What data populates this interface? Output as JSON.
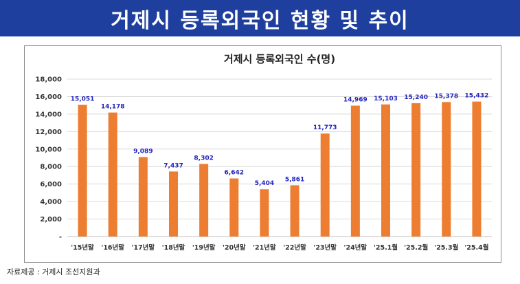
{
  "header": {
    "title": "거제시 등록외국인 현황 및 추이"
  },
  "source_note": "자료제공 : 거제시 조선지원과",
  "colors": {
    "banner": "#1f3f9f",
    "bar": "#ed7d31",
    "data_label": "#1f1fbf",
    "grid": "#d9d9d9"
  },
  "chart_data": {
    "type": "bar",
    "title": "거제시 등록외국인 수(명)",
    "xlabel": "",
    "ylabel": "",
    "categories": [
      "'15년말",
      "'16년말",
      "'17년말",
      "'18년말",
      "'19년말",
      "'20년말",
      "'21년말",
      "'22년말",
      "'23년말",
      "'24년말",
      "'25.1월",
      "'25.2월",
      "'25.3월",
      "'25.4월"
    ],
    "values": [
      15051,
      14178,
      9089,
      7437,
      8302,
      6642,
      5404,
      5861,
      11773,
      14969,
      15103,
      15240,
      15378,
      15432
    ],
    "data_labels": [
      "15,051",
      "14,178",
      "9,089",
      "7,437",
      "8,302",
      "6,642",
      "5,404",
      "5,861",
      "11,773",
      "14,969",
      "15,103",
      "15,240",
      "15,378",
      "15,432"
    ],
    "yticks": [
      0,
      2000,
      4000,
      6000,
      8000,
      10000,
      12000,
      14000,
      16000,
      18000
    ],
    "ytick_labels": [
      "-",
      "2,000",
      "4,000",
      "6,000",
      "8,000",
      "10,000",
      "12,000",
      "14,000",
      "16,000",
      "18,000"
    ],
    "ylim": [
      0,
      18000
    ],
    "grid": true,
    "legend": "none"
  }
}
